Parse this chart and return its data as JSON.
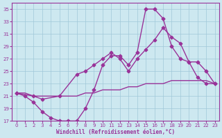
{
  "xlabel": "Windchill (Refroidissement éolien,°C)",
  "background_color": "#cde8f0",
  "grid_color": "#a0c8d8",
  "line_color": "#993399",
  "xlim": [
    -0.5,
    23.5
  ],
  "ylim": [
    17,
    36
  ],
  "yticks": [
    17,
    19,
    21,
    23,
    25,
    27,
    29,
    31,
    33,
    35
  ],
  "xticks": [
    0,
    1,
    2,
    3,
    4,
    5,
    6,
    7,
    8,
    9,
    10,
    11,
    12,
    13,
    14,
    15,
    16,
    17,
    18,
    19,
    20,
    21,
    22,
    23
  ],
  "series": [
    {
      "x": [
        0,
        1,
        2,
        3,
        4,
        5,
        6,
        7,
        8,
        9,
        10,
        11,
        12,
        13,
        14,
        15,
        16,
        17,
        18,
        19,
        20,
        21,
        22,
        23
      ],
      "y": [
        21.5,
        21.5,
        21,
        21,
        21,
        21,
        21,
        21,
        21.5,
        21.5,
        22,
        22,
        22,
        22.5,
        22.5,
        23,
        23,
        23,
        23.5,
        23.5,
        23.5,
        23.5,
        23.5,
        23
      ],
      "marker": null,
      "markersize": 0,
      "linewidth": 1.0
    },
    {
      "x": [
        0,
        1,
        2,
        3,
        4,
        5,
        6,
        7,
        8,
        9,
        10,
        11,
        12,
        13,
        14,
        15,
        16,
        17,
        18,
        19,
        20,
        21,
        22,
        23
      ],
      "y": [
        21.5,
        21,
        20,
        18.5,
        17.5,
        17,
        17,
        17,
        19,
        22,
        26,
        27.5,
        27.5,
        26,
        28,
        35,
        35,
        33.5,
        29,
        27,
        26.5,
        26.5,
        25,
        23
      ],
      "marker": "D",
      "markersize": 2.5,
      "linewidth": 1.0
    },
    {
      "x": [
        0,
        2,
        3,
        5,
        7,
        8,
        9,
        10,
        11,
        12,
        13,
        14,
        15,
        16,
        17,
        18,
        19,
        20,
        21,
        22,
        23
      ],
      "y": [
        21.5,
        21,
        20.5,
        21,
        24.5,
        25,
        26,
        27,
        28,
        27,
        25,
        27,
        28.5,
        30,
        32,
        30.5,
        29.5,
        26.5,
        24,
        23,
        23
      ],
      "marker": "P",
      "markersize": 3,
      "linewidth": 1.0
    }
  ]
}
